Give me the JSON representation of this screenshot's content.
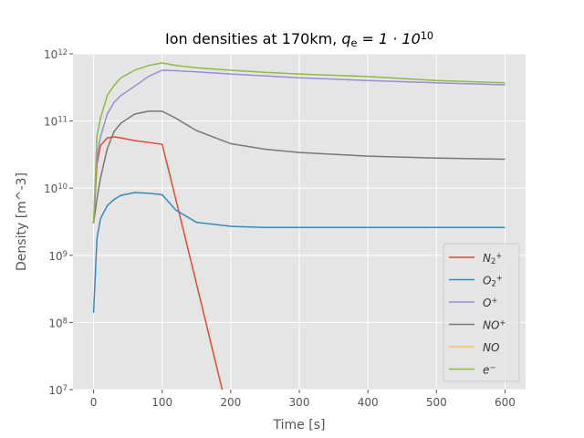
{
  "chart_data": {
    "type": "line",
    "title": "Ion densities at 170km, ",
    "title_math": "q_e = 1 · 10^10",
    "x_label": "Time [s]",
    "y_label": "Density [m^-3]",
    "log_y": true,
    "grid": true,
    "legend": "lower right",
    "xlim": [
      -30,
      630
    ],
    "xticks": [
      0,
      100,
      200,
      300,
      400,
      500,
      600
    ],
    "ylim": [
      10000000,
      1000000000000
    ],
    "yticks": [
      {
        "value": 10000000,
        "label": "10^7"
      },
      {
        "value": 100000000,
        "label": "10^8"
      },
      {
        "value": 1000000000,
        "label": "10^9"
      },
      {
        "value": 10000000000,
        "label": "10^10"
      },
      {
        "value": 100000000000,
        "label": "10^11"
      },
      {
        "value": 1000000000000,
        "label": "10^12"
      }
    ],
    "x": [
      0,
      5,
      10,
      20,
      30,
      40,
      60,
      80,
      100,
      120,
      150,
      200,
      250,
      300,
      400,
      500,
      600
    ],
    "series": [
      {
        "name": "N_2^+",
        "color": "#e24a33",
        "values": [
          3000000000,
          23000000000,
          43000000000,
          56000000000,
          58000000000,
          56000000000,
          51000000000,
          48000000000,
          45000000000,
          6800000000,
          380000000,
          3000000,
          null,
          null,
          null,
          null,
          null
        ]
      },
      {
        "name": "O_2^+",
        "color": "#348abd",
        "values": [
          140000000,
          1800000000,
          3500000000,
          5500000000,
          6800000000,
          7800000000,
          8600000000,
          8400000000,
          8000000000,
          4700000000,
          3100000000,
          2700000000,
          2600000000,
          2600000000,
          2600000000,
          2600000000,
          2600000000
        ]
      },
      {
        "name": "O^+",
        "color": "#988ed5",
        "values": [
          3000000000,
          30000000000,
          58000000000,
          127000000000,
          190000000000,
          240000000000,
          330000000000,
          460000000000,
          570000000000,
          560000000000,
          540000000000,
          500000000000,
          470000000000,
          440000000000,
          400000000000,
          370000000000,
          345000000000
        ]
      },
      {
        "name": "NO^+",
        "color": "#777777",
        "values": [
          3000000000,
          7000000000,
          14000000000,
          39000000000,
          70000000000,
          93000000000,
          127000000000,
          140000000000,
          140000000000,
          110000000000,
          72000000000,
          46000000000,
          38000000000,
          34000000000,
          30000000000,
          28000000000,
          27000000000
        ]
      },
      {
        "name": "NO",
        "color": "#fbc15e",
        "values": [
          null,
          null,
          null,
          null,
          null,
          null,
          null,
          null,
          null,
          null,
          null,
          null,
          null,
          null,
          null,
          null,
          null
        ]
      },
      {
        "name": "e^−",
        "color": "#8eba42",
        "values": [
          3000000000,
          60000000000,
          110000000000,
          240000000000,
          340000000000,
          440000000000,
          570000000000,
          670000000000,
          730000000000,
          670000000000,
          620000000000,
          570000000000,
          530000000000,
          500000000000,
          460000000000,
          400000000000,
          370000000000
        ]
      }
    ]
  }
}
